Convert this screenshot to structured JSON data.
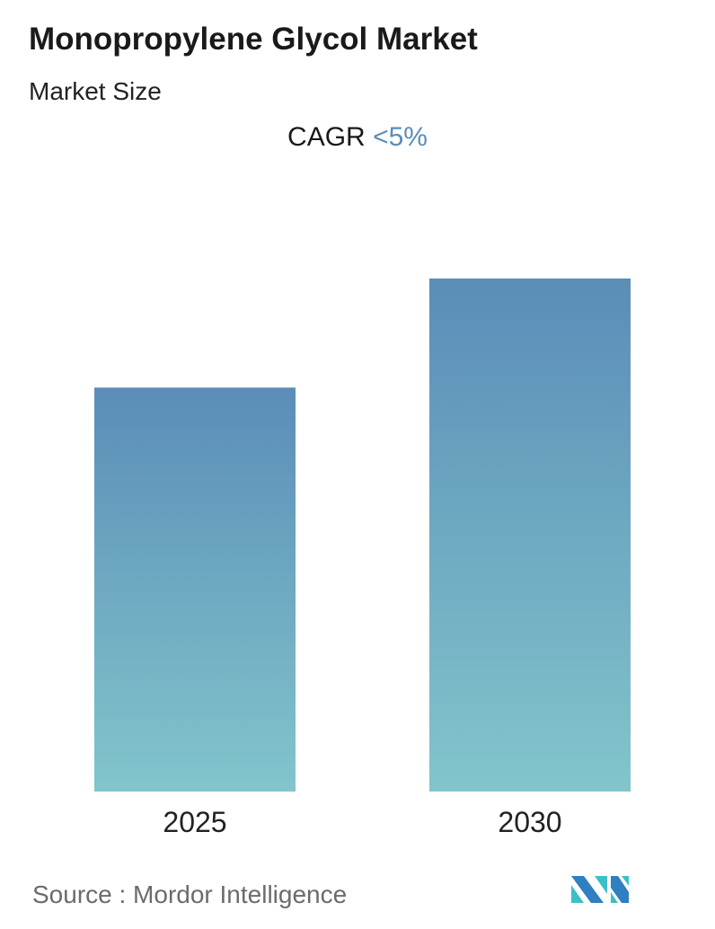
{
  "chart_data": {
    "type": "bar",
    "title": "Monopropylene Glycol Market",
    "subtitle": "Market Size",
    "cagr_label": "CAGR",
    "cagr_value": "<5%",
    "categories": [
      "2025",
      "2030"
    ],
    "values": [
      100,
      127
    ],
    "value_note": "relative bar heights; no values printed",
    "xlabel": "",
    "ylabel": "",
    "grid": false,
    "bar_gradient": [
      "#5b8db8",
      "#82c5cb"
    ]
  },
  "source": "Source :  Mordor Intelligence",
  "logo": {
    "text": "Mordor Intelligence",
    "colors": [
      "#2f7fc1",
      "#3cc0c8"
    ]
  }
}
